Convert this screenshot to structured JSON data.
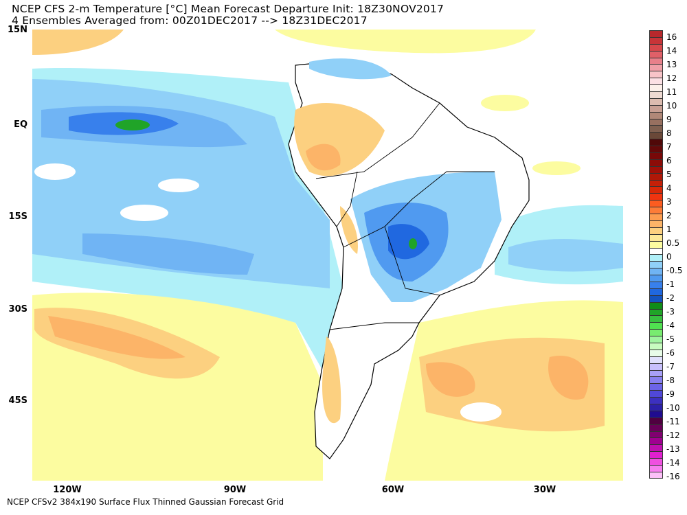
{
  "title_line1": "NCEP CFS 2-m Temperature [°C] Mean Forecast Departure Init: 18Z30NOV2017",
  "title_line2": "4 Ensembles Averaged from: 00Z01DEC2017 --> 18Z31DEC2017",
  "footer": "NCEP CFSv2 384x190 Surface Flux Thinned Gaussian Forecast Grid",
  "lat_labels": [
    "15N",
    "EQ",
    "15S",
    "30S",
    "45S"
  ],
  "lon_labels": [
    "120W",
    "90W",
    "60W",
    "30W"
  ],
  "colorbar": {
    "labels": [
      "16",
      "14",
      "13",
      "12",
      "11",
      "10",
      "9",
      "8",
      "7",
      "6",
      "5",
      "4",
      "3",
      "2",
      "1",
      "0.5",
      "0",
      "-0.5",
      "-1",
      "-2",
      "-3",
      "-4",
      "-5",
      "-6",
      "-7",
      "-8",
      "-9",
      "-10",
      "-11",
      "-12",
      "-13",
      "-14",
      "-16"
    ],
    "colors": [
      "#b8282c",
      "#c83438",
      "#d8484c",
      "#e06068",
      "#e8808a",
      "#f0a0a8",
      "#f8c4c8",
      "#fce0e4",
      "#fcf0ea",
      "#eedad2",
      "#dcbcb0",
      "#c8a094",
      "#b08878",
      "#987060",
      "#806050",
      "#6a4838",
      "#500808",
      "#640808",
      "#780808",
      "#8c0c08",
      "#a01008",
      "#b01808",
      "#c42008",
      "#d82808",
      "#f03410",
      "#fc5c20",
      "#fc7c38",
      "#fc9c50",
      "#fcb468",
      "#fcd080",
      "#fce898",
      "#fcfca0",
      "#ffffff",
      "#b0f0f8",
      "#90d0f8",
      "#70b4f4",
      "#509af0",
      "#3880ec",
      "#2068e0",
      "#1454c0",
      "#108c18",
      "#20a428",
      "#38c040",
      "#50e050",
      "#78ec70",
      "#a0f4a0",
      "#c8fcc0",
      "#e8fce8",
      "#e0e0fc",
      "#c8c0fc",
      "#a8a0f8",
      "#8880f0",
      "#6c64e8",
      "#5048d8",
      "#3c30c0",
      "#2c20a8",
      "#200c90",
      "#500040",
      "#680058",
      "#800070",
      "#a00090",
      "#c010b0",
      "#e020d0",
      "#f050e0",
      "#f880f0",
      "#fcc0f8"
    ]
  }
}
